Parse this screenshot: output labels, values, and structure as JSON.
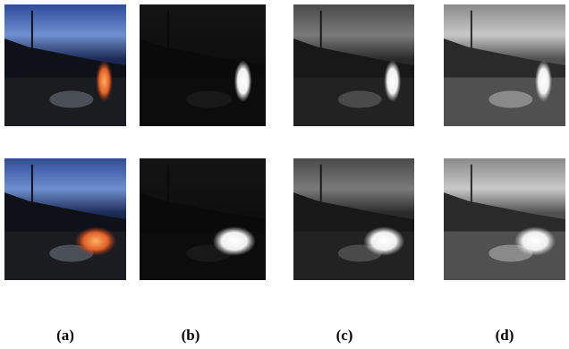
{
  "figure": {
    "panels": [
      "(a)",
      "(b)",
      "(c)",
      "(d)"
    ]
  }
}
